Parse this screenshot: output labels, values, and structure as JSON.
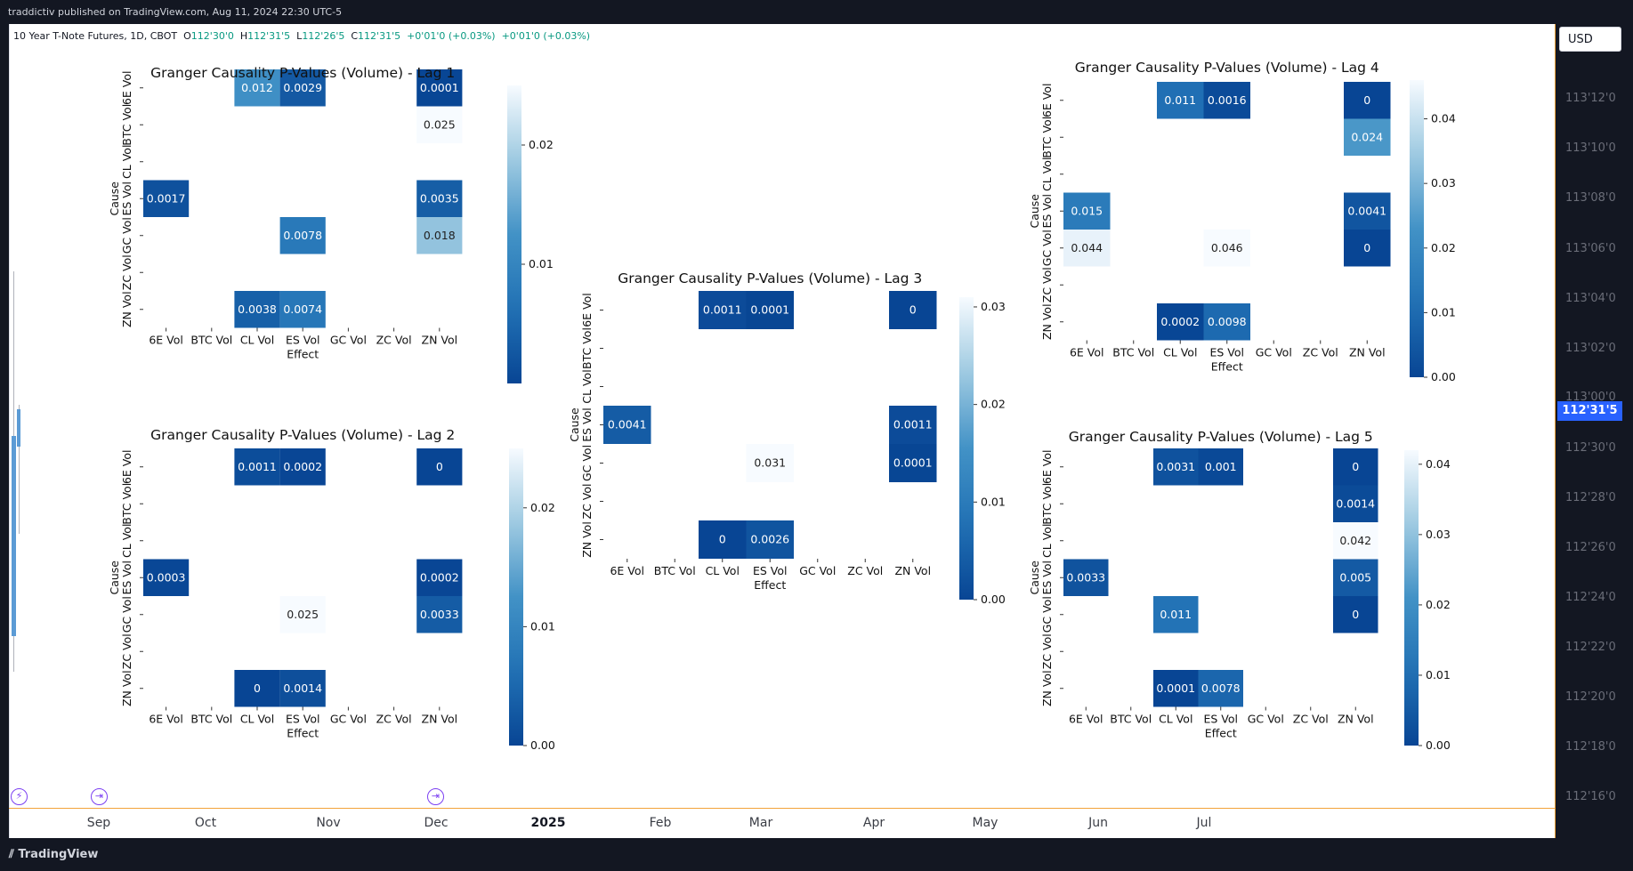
{
  "header": {
    "publish_text": "traddictiv published on TradingView.com, Aug 11, 2024 22:30 UTC-5"
  },
  "legend": {
    "symbol": "10 Year T-Note Futures, 1D, CBOT",
    "o_label": "O",
    "o_value": "112'30'0",
    "h_label": "H",
    "h_value": "112'31'5",
    "l_label": "L",
    "l_value": "112'26'5",
    "c_label": "C",
    "c_value": "112'31'5",
    "change1": "+0'01'0 (+0.03%)",
    "change2": "+0'01'0 (+0.03%)"
  },
  "currency": "USD",
  "price_axis": {
    "labels": [
      "113'12'0",
      "113'10'0",
      "113'08'0",
      "113'06'0",
      "113'04'0",
      "113'02'0",
      "113'00'0",
      "112'30'0",
      "112'28'0",
      "112'26'0",
      "112'24'0",
      "112'22'0",
      "112'20'0",
      "112'18'0",
      "112'16'0"
    ],
    "current_price": "112'31'5"
  },
  "time_axis": {
    "labels": [
      "Sep",
      "Oct",
      "Nov",
      "Dec",
      "2025",
      "Feb",
      "Mar",
      "Apr",
      "May",
      "Jun",
      "Jul"
    ],
    "bold": [
      "2025"
    ]
  },
  "events": {
    "flash_icon": "lightning-icon",
    "arrow_icon": "arrow-right-icon"
  },
  "footer": {
    "brand": "TradingView",
    "brand_icon": "tradingview-logo-icon"
  },
  "colors": {
    "cmap_dark": "#1c64b0",
    "cmap_light": "#f7fbff",
    "accent": "#2962ff",
    "divider": "#f2a33a"
  },
  "chart_data": [
    {
      "type": "heatmap",
      "title": "Granger Causality P-Values (Volume) - Lag 1",
      "xlabel": "Effect",
      "ylabel": "Cause",
      "x": [
        "6E Vol",
        "BTC Vol",
        "CL Vol",
        "ES Vol",
        "GC Vol",
        "ZC Vol",
        "ZN Vol"
      ],
      "y": [
        "6E Vol",
        "BTC Vol",
        "CL Vol",
        "ES Vol",
        "GC Vol",
        "ZC Vol",
        "ZN Vol"
      ],
      "values": [
        [
          null,
          null,
          "0.012",
          "0.0029",
          null,
          null,
          "0.0001"
        ],
        [
          null,
          null,
          null,
          null,
          null,
          null,
          "0.025"
        ],
        [
          null,
          null,
          null,
          null,
          null,
          null,
          null
        ],
        [
          "0.0017",
          null,
          null,
          null,
          null,
          null,
          "0.0035"
        ],
        [
          null,
          null,
          null,
          "0.0078",
          null,
          null,
          "0.018"
        ],
        [
          null,
          null,
          null,
          null,
          null,
          null,
          null
        ],
        [
          null,
          null,
          "0.0038",
          "0.0074",
          null,
          null,
          null
        ]
      ],
      "colorbar": {
        "ticks": [
          "0.01",
          "0.02"
        ],
        "tick_values": [
          0.01,
          0.02
        ],
        "range": [
          0,
          0.025
        ]
      }
    },
    {
      "type": "heatmap",
      "title": "Granger Causality P-Values (Volume) - Lag 2",
      "xlabel": "Effect",
      "ylabel": "Cause",
      "x": [
        "6E Vol",
        "BTC Vol",
        "CL Vol",
        "ES Vol",
        "GC Vol",
        "ZC Vol",
        "ZN Vol"
      ],
      "y": [
        "6E Vol",
        "BTC Vol",
        "CL Vol",
        "ES Vol",
        "GC Vol",
        "ZC Vol",
        "ZN Vol"
      ],
      "values": [
        [
          null,
          null,
          "0.0011",
          "0.0002",
          null,
          null,
          "0"
        ],
        [
          null,
          null,
          null,
          null,
          null,
          null,
          null
        ],
        [
          null,
          null,
          null,
          null,
          null,
          null,
          null
        ],
        [
          "0.0003",
          null,
          null,
          null,
          null,
          null,
          "0.0002"
        ],
        [
          null,
          null,
          null,
          "0.025",
          null,
          null,
          "0.0033"
        ],
        [
          null,
          null,
          null,
          null,
          null,
          null,
          null
        ],
        [
          null,
          null,
          "0",
          "0.0014",
          null,
          null,
          null
        ]
      ],
      "colorbar": {
        "ticks": [
          "0.00",
          "0.01",
          "0.02"
        ],
        "tick_values": [
          0,
          0.01,
          0.02
        ],
        "range": [
          0,
          0.025
        ]
      }
    },
    {
      "type": "heatmap",
      "title": "Granger Causality P-Values (Volume) - Lag 3",
      "xlabel": "Effect",
      "ylabel": "Cause",
      "x": [
        "6E Vol",
        "BTC Vol",
        "CL Vol",
        "ES Vol",
        "GC Vol",
        "ZC Vol",
        "ZN Vol"
      ],
      "y": [
        "6E Vol",
        "BTC Vol",
        "CL Vol",
        "ES Vol",
        "GC Vol",
        "ZC Vol",
        "ZN Vol"
      ],
      "values": [
        [
          null,
          null,
          "0.0011",
          "0.0001",
          null,
          null,
          "0"
        ],
        [
          null,
          null,
          null,
          null,
          null,
          null,
          null
        ],
        [
          null,
          null,
          null,
          null,
          null,
          null,
          null
        ],
        [
          "0.0041",
          null,
          null,
          null,
          null,
          null,
          "0.0011"
        ],
        [
          null,
          null,
          null,
          "0.031",
          null,
          null,
          "0.0001"
        ],
        [
          null,
          null,
          null,
          null,
          null,
          null,
          null
        ],
        [
          null,
          null,
          "0",
          "0.0026",
          null,
          null,
          null
        ]
      ],
      "colorbar": {
        "ticks": [
          "0.00",
          "0.01",
          "0.02",
          "0.03"
        ],
        "tick_values": [
          0,
          0.01,
          0.02,
          0.03
        ],
        "range": [
          0,
          0.031
        ]
      }
    },
    {
      "type": "heatmap",
      "title": "Granger Causality P-Values (Volume) - Lag 4",
      "xlabel": "Effect",
      "ylabel": "Cause",
      "x": [
        "6E Vol",
        "BTC Vol",
        "CL Vol",
        "ES Vol",
        "GC Vol",
        "ZC Vol",
        "ZN Vol"
      ],
      "y": [
        "6E Vol",
        "BTC Vol",
        "CL Vol",
        "ES Vol",
        "GC Vol",
        "ZC Vol",
        "ZN Vol"
      ],
      "values": [
        [
          null,
          null,
          "0.011",
          "0.0016",
          null,
          null,
          "0"
        ],
        [
          null,
          null,
          null,
          null,
          null,
          null,
          "0.024"
        ],
        [
          null,
          null,
          null,
          null,
          null,
          null,
          null
        ],
        [
          "0.015",
          null,
          null,
          null,
          null,
          null,
          "0.0041"
        ],
        [
          "0.044",
          null,
          null,
          "0.046",
          null,
          null,
          "0"
        ],
        [
          null,
          null,
          null,
          null,
          null,
          null,
          null
        ],
        [
          null,
          null,
          "0.0002",
          "0.0098",
          null,
          null,
          null
        ]
      ],
      "colorbar": {
        "ticks": [
          "0.00",
          "0.01",
          "0.02",
          "0.03",
          "0.04"
        ],
        "tick_values": [
          0,
          0.01,
          0.02,
          0.03,
          0.04
        ],
        "range": [
          0,
          0.046
        ]
      }
    },
    {
      "type": "heatmap",
      "title": "Granger Causality P-Values (Volume) - Lag 5",
      "xlabel": "Effect",
      "ylabel": "Cause",
      "x": [
        "6E Vol",
        "BTC Vol",
        "CL Vol",
        "ES Vol",
        "GC Vol",
        "ZC Vol",
        "ZN Vol"
      ],
      "y": [
        "6E Vol",
        "BTC Vol",
        "CL Vol",
        "ES Vol",
        "GC Vol",
        "ZC Vol",
        "ZN Vol"
      ],
      "values": [
        [
          null,
          null,
          "0.0031",
          "0.001",
          null,
          null,
          "0"
        ],
        [
          null,
          null,
          null,
          null,
          null,
          null,
          "0.0014"
        ],
        [
          null,
          null,
          null,
          null,
          null,
          null,
          "0.042"
        ],
        [
          "0.0033",
          null,
          null,
          null,
          null,
          null,
          "0.005"
        ],
        [
          null,
          null,
          "0.011",
          null,
          null,
          null,
          "0"
        ],
        [
          null,
          null,
          null,
          null,
          null,
          null,
          null
        ],
        [
          null,
          null,
          "0.0001",
          "0.0078",
          null,
          null,
          null
        ]
      ],
      "colorbar": {
        "ticks": [
          "0.00",
          "0.01",
          "0.02",
          "0.03",
          "0.04"
        ],
        "tick_values": [
          0,
          0.01,
          0.02,
          0.03,
          0.04
        ],
        "range": [
          0,
          0.042
        ]
      }
    }
  ]
}
